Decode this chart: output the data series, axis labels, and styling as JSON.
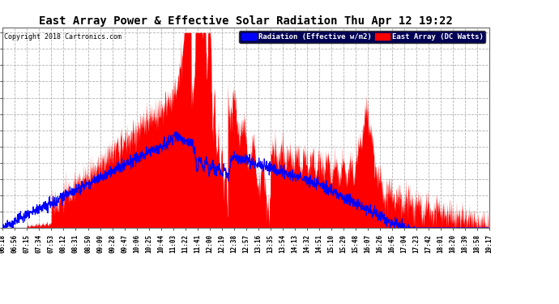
{
  "title": "East Array Power & Effective Solar Radiation Thu Apr 12 19:22",
  "copyright": "Copyright 2018 Cartronics.com",
  "legend_blue": "Radiation (Effective w/m2)",
  "legend_red": "East Array (DC Watts)",
  "background_color": "#ffffff",
  "plot_bg_color": "#ffffff",
  "grid_color": "#aaaaaa",
  "title_color": "#000000",
  "copyright_color": "#000000",
  "yticks": [
    -1.5,
    155.4,
    312.3,
    469.2,
    626.1,
    783.0,
    939.9,
    1096.8,
    1253.7,
    1410.6,
    1567.5,
    1724.4,
    1881.3
  ],
  "xtick_labels": [
    "06:18",
    "06:56",
    "07:15",
    "07:34",
    "07:53",
    "08:12",
    "08:31",
    "08:50",
    "09:09",
    "09:28",
    "09:47",
    "10:06",
    "10:25",
    "10:44",
    "11:03",
    "11:22",
    "11:41",
    "12:00",
    "12:19",
    "12:38",
    "12:57",
    "13:16",
    "13:35",
    "13:54",
    "14:13",
    "14:32",
    "14:51",
    "15:10",
    "15:29",
    "15:48",
    "16:07",
    "16:26",
    "16:45",
    "17:04",
    "17:23",
    "17:42",
    "18:01",
    "18:20",
    "18:39",
    "18:58",
    "19:17"
  ],
  "ymin": -1.5,
  "ymax": 1881.3,
  "fill_color": "#ff0000",
  "line_color": "#0000ff"
}
